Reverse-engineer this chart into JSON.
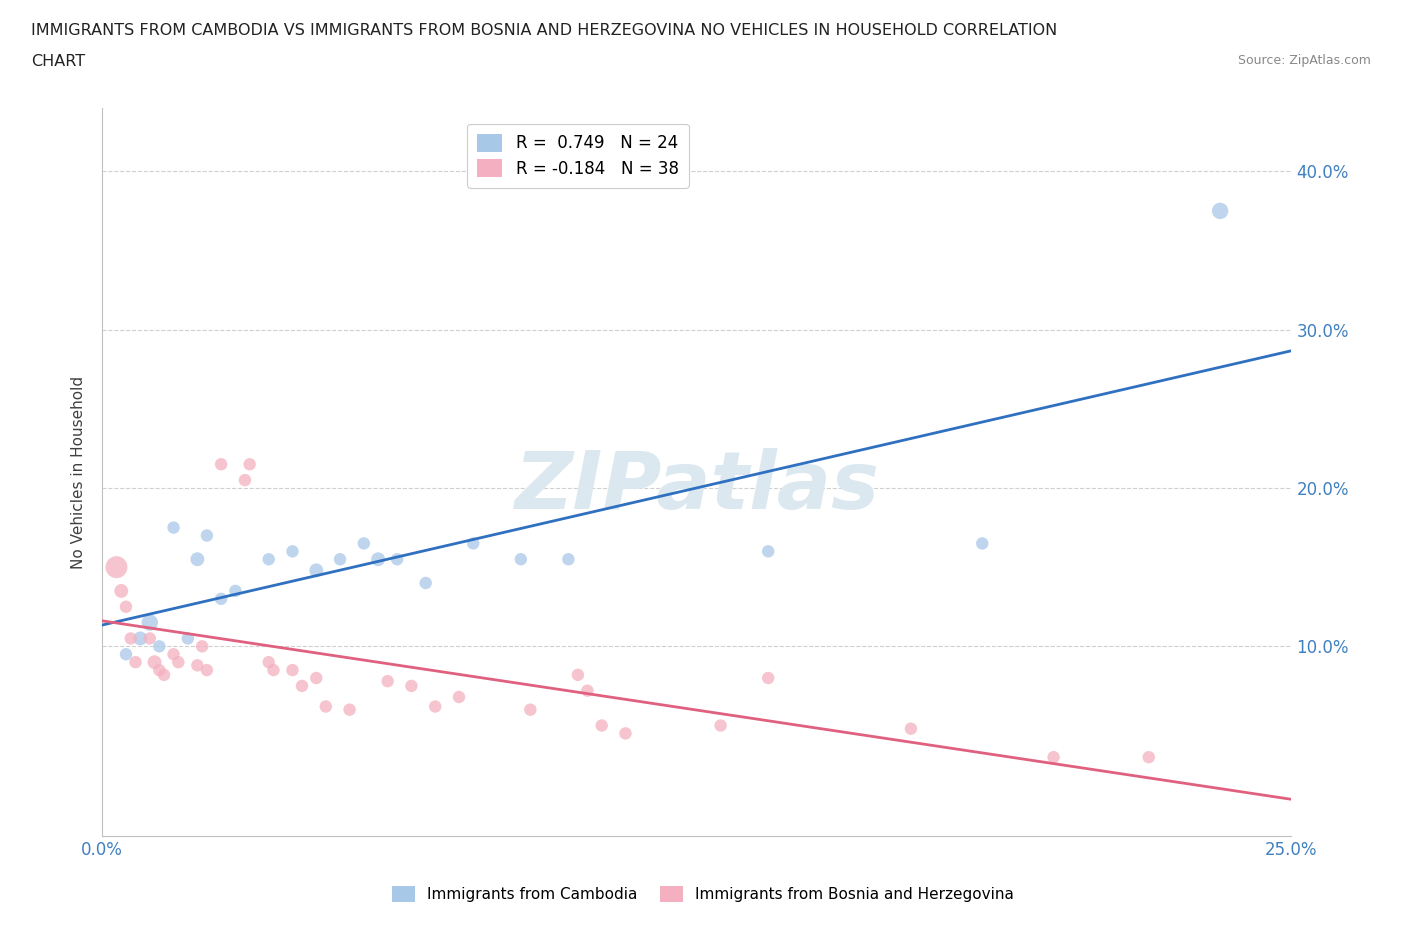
{
  "title_line1": "IMMIGRANTS FROM CAMBODIA VS IMMIGRANTS FROM BOSNIA AND HERZEGOVINA NO VEHICLES IN HOUSEHOLD CORRELATION",
  "title_line2": "CHART",
  "source": "Source: ZipAtlas.com",
  "ylabel": "No Vehicles in Household",
  "legend_cambodia": "R =  0.749   N = 24",
  "legend_bosnia": "R = -0.184   N = 38",
  "color_cambodia": "#a8c8e8",
  "color_bosnia": "#f4b0c0",
  "line_color_cambodia": "#3070c0",
  "line_color_bosnia": "#e06080",
  "watermark": "ZIPatlas",
  "watermark_color": "#dce8f0",
  "xlim": [
    0.0,
    0.25
  ],
  "ylim": [
    -0.02,
    0.44
  ],
  "ytick_positions": [
    0.1,
    0.2,
    0.3,
    0.4
  ],
  "ytick_labels": [
    "10.0%",
    "20.0%",
    "30.0%",
    "40.0%"
  ],
  "xtick_positions": [
    0.0,
    0.05,
    0.1,
    0.15,
    0.2,
    0.25
  ],
  "xtick_labels": [
    "0.0%",
    "",
    "",
    "",
    "",
    "25.0%"
  ],
  "cambodia_x": [
    0.005,
    0.008,
    0.01,
    0.012,
    0.015,
    0.018,
    0.02,
    0.022,
    0.025,
    0.028,
    0.035,
    0.04,
    0.045,
    0.05,
    0.055,
    0.058,
    0.062,
    0.068,
    0.078,
    0.088,
    0.098,
    0.14,
    0.185,
    0.235
  ],
  "cambodia_y": [
    0.095,
    0.105,
    0.115,
    0.1,
    0.175,
    0.105,
    0.155,
    0.17,
    0.13,
    0.135,
    0.155,
    0.16,
    0.148,
    0.155,
    0.165,
    0.155,
    0.155,
    0.14,
    0.165,
    0.155,
    0.155,
    0.16,
    0.165,
    0.375
  ],
  "cambodia_size": [
    80,
    100,
    140,
    80,
    80,
    80,
    100,
    80,
    80,
    80,
    80,
    80,
    100,
    80,
    80,
    100,
    80,
    80,
    80,
    80,
    80,
    80,
    80,
    140
  ],
  "bosnia_x": [
    0.003,
    0.004,
    0.005,
    0.006,
    0.007,
    0.01,
    0.011,
    0.012,
    0.013,
    0.015,
    0.016,
    0.02,
    0.021,
    0.022,
    0.025,
    0.03,
    0.031,
    0.035,
    0.036,
    0.04,
    0.042,
    0.045,
    0.047,
    0.052,
    0.06,
    0.065,
    0.07,
    0.075,
    0.09,
    0.1,
    0.102,
    0.105,
    0.11,
    0.13,
    0.14,
    0.17,
    0.2,
    0.22
  ],
  "bosnia_y": [
    0.15,
    0.135,
    0.125,
    0.105,
    0.09,
    0.105,
    0.09,
    0.085,
    0.082,
    0.095,
    0.09,
    0.088,
    0.1,
    0.085,
    0.215,
    0.205,
    0.215,
    0.09,
    0.085,
    0.085,
    0.075,
    0.08,
    0.062,
    0.06,
    0.078,
    0.075,
    0.062,
    0.068,
    0.06,
    0.082,
    0.072,
    0.05,
    0.045,
    0.05,
    0.08,
    0.048,
    0.03,
    0.03
  ],
  "bosnia_size": [
    250,
    100,
    80,
    80,
    80,
    80,
    100,
    80,
    80,
    80,
    80,
    80,
    80,
    80,
    80,
    80,
    80,
    80,
    80,
    80,
    80,
    80,
    80,
    80,
    80,
    80,
    80,
    80,
    80,
    80,
    80,
    80,
    80,
    80,
    80,
    80,
    80,
    80
  ],
  "bg_color": "#ffffff",
  "grid_color": "#d0d0d0",
  "tick_color_blue": "#4080c0",
  "axis_label_color": "#404040",
  "title_color": "#222222",
  "source_color": "#888888"
}
